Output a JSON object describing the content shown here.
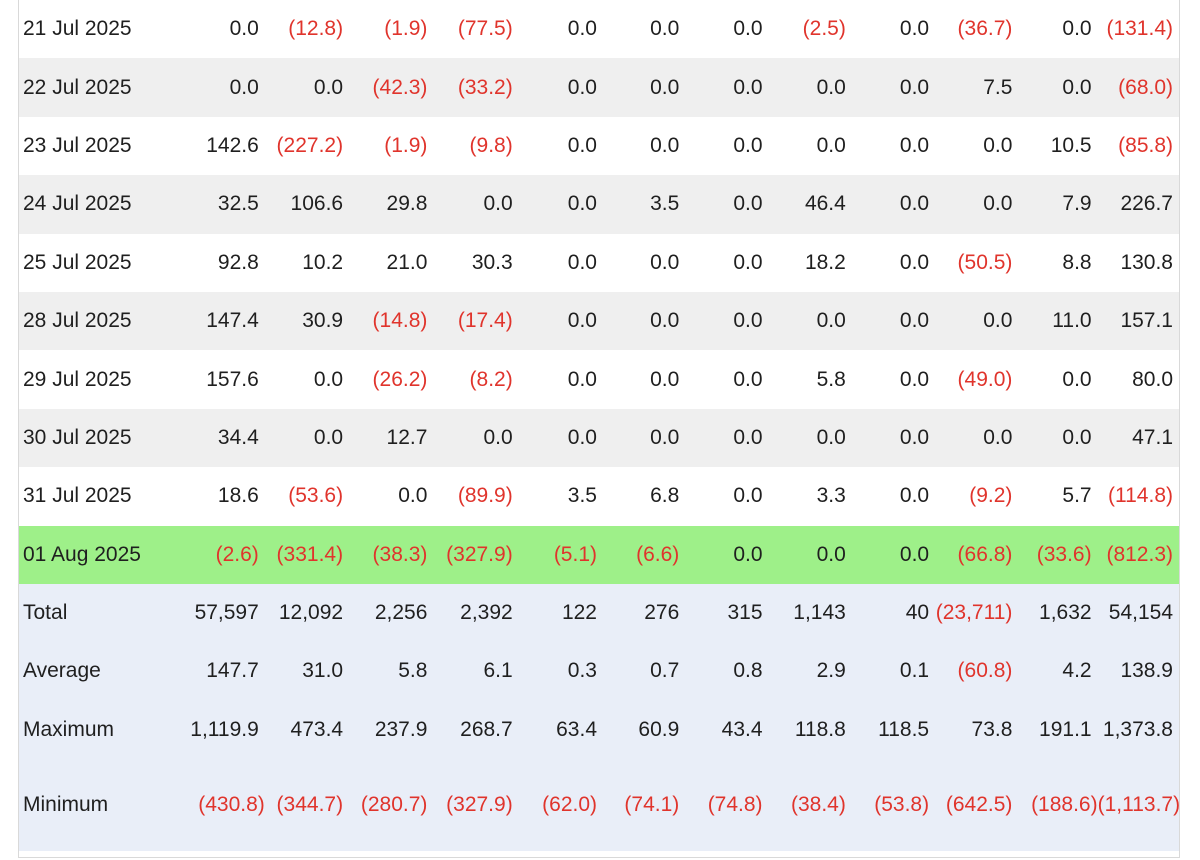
{
  "rows": [
    {
      "date": "21 Jul 2025",
      "values": [
        "0.0",
        "(12.8)",
        "(1.9)",
        "(77.5)",
        "0.0",
        "0.0",
        "0.0",
        "(2.5)",
        "0.0",
        "(36.7)",
        "0.0",
        "(131.4)"
      ]
    },
    {
      "date": "22 Jul 2025",
      "values": [
        "0.0",
        "0.0",
        "(42.3)",
        "(33.2)",
        "0.0",
        "0.0",
        "0.0",
        "0.0",
        "0.0",
        "7.5",
        "0.0",
        "(68.0)"
      ]
    },
    {
      "date": "23 Jul 2025",
      "values": [
        "142.6",
        "(227.2)",
        "(1.9)",
        "(9.8)",
        "0.0",
        "0.0",
        "0.0",
        "0.0",
        "0.0",
        "0.0",
        "10.5",
        "(85.8)"
      ]
    },
    {
      "date": "24 Jul 2025",
      "values": [
        "32.5",
        "106.6",
        "29.8",
        "0.0",
        "0.0",
        "3.5",
        "0.0",
        "46.4",
        "0.0",
        "0.0",
        "7.9",
        "226.7"
      ]
    },
    {
      "date": "25 Jul 2025",
      "values": [
        "92.8",
        "10.2",
        "21.0",
        "30.3",
        "0.0",
        "0.0",
        "0.0",
        "18.2",
        "0.0",
        "(50.5)",
        "8.8",
        "130.8"
      ]
    },
    {
      "date": "28 Jul 2025",
      "values": [
        "147.4",
        "30.9",
        "(14.8)",
        "(17.4)",
        "0.0",
        "0.0",
        "0.0",
        "0.0",
        "0.0",
        "0.0",
        "11.0",
        "157.1"
      ]
    },
    {
      "date": "29 Jul 2025",
      "values": [
        "157.6",
        "0.0",
        "(26.2)",
        "(8.2)",
        "0.0",
        "0.0",
        "0.0",
        "5.8",
        "0.0",
        "(49.0)",
        "0.0",
        "80.0"
      ]
    },
    {
      "date": "30 Jul 2025",
      "values": [
        "34.4",
        "0.0",
        "12.7",
        "0.0",
        "0.0",
        "0.0",
        "0.0",
        "0.0",
        "0.0",
        "0.0",
        "0.0",
        "47.1"
      ]
    },
    {
      "date": "31 Jul 2025",
      "values": [
        "18.6",
        "(53.6)",
        "0.0",
        "(89.9)",
        "3.5",
        "6.8",
        "0.0",
        "3.3",
        "0.0",
        "(9.2)",
        "5.7",
        "(114.8)"
      ]
    },
    {
      "date": "01 Aug 2025",
      "values": [
        "(2.6)",
        "(331.4)",
        "(38.3)",
        "(327.9)",
        "(5.1)",
        "(6.6)",
        "0.0",
        "0.0",
        "0.0",
        "(66.8)",
        "(33.6)",
        "(812.3)"
      ],
      "highlight": true
    }
  ],
  "summary": [
    {
      "label": "Total",
      "values": [
        "57,597",
        "12,092",
        "2,256",
        "2,392",
        "122",
        "276",
        "315",
        "1,143",
        "40",
        "(23,711)",
        "1,632",
        "54,154"
      ]
    },
    {
      "label": "Average",
      "values": [
        "147.7",
        "31.0",
        "5.8",
        "6.1",
        "0.3",
        "0.7",
        "0.8",
        "2.9",
        "0.1",
        "(60.8)",
        "4.2",
        "138.9"
      ]
    },
    {
      "label": "Maximum",
      "values": [
        "1,119.9",
        "473.4",
        "237.9",
        "268.7",
        "63.4",
        "60.9",
        "43.4",
        "118.8",
        "118.5",
        "73.8",
        "191.1",
        "1,373.8"
      ]
    },
    {
      "label": "Minimum",
      "values": [
        "(430.8)",
        "(344.7)",
        "(280.7)",
        "(327.9)",
        "(62.0)",
        "(74.1)",
        "(74.8)",
        "(38.4)",
        "(53.8)",
        "(642.5)",
        "(188.6)",
        "(1,113.7)"
      ]
    }
  ],
  "colors": {
    "negative": "#e0342c",
    "highlight": "#9ef089",
    "summary_bg": "#e9eef8",
    "stripe": "#efefef"
  }
}
